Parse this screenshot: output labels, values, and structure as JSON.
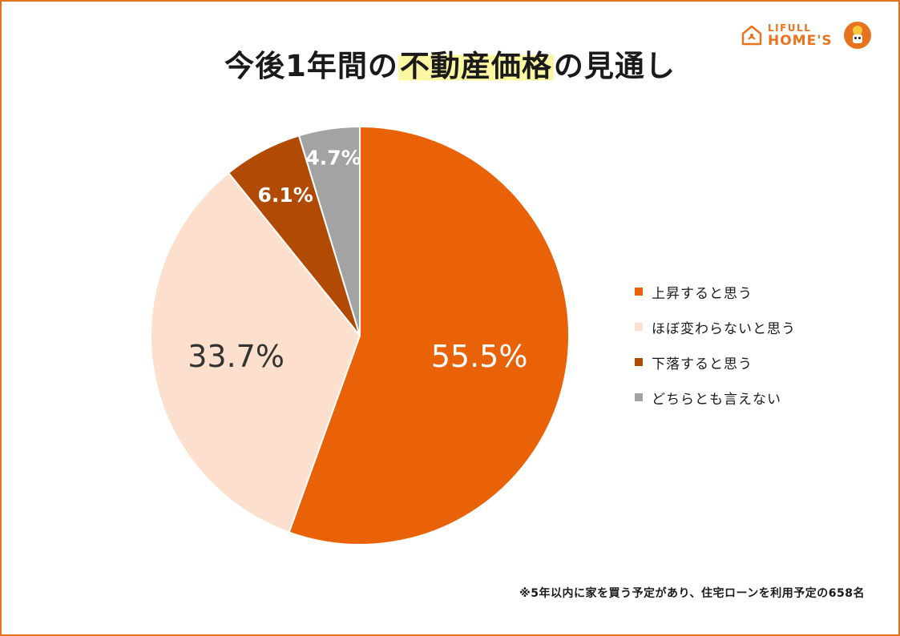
{
  "title": {
    "before": "今後1年間の",
    "highlight": "不動産価格",
    "after": "の見通し"
  },
  "logo": {
    "line1": "LIFULL",
    "line2": "HOME'S"
  },
  "colors": {
    "frame": "#e8731f",
    "highlight": "#fbf7a3"
  },
  "chart_data": {
    "type": "pie",
    "categories": [
      "上昇すると思う",
      "ほぼ変わらないと思う",
      "下落すると思う",
      "どちらとも言えない"
    ],
    "values": [
      55.5,
      33.7,
      6.1,
      4.7
    ],
    "value_labels": [
      "55.5%",
      "33.7%",
      "6.1%",
      "4.7%"
    ],
    "colors": [
      "#ea6208",
      "#fce0cd",
      "#b04a05",
      "#a3a3a3"
    ],
    "label_colors": [
      "#ffffff",
      "#333333",
      "#ffffff",
      "#ffffff"
    ],
    "start_angle_deg": 0,
    "direction": "clockwise",
    "legend_position": "right"
  },
  "footnote": "※5年以内に家を買う予定があり、住宅ローンを利用予定の658名"
}
